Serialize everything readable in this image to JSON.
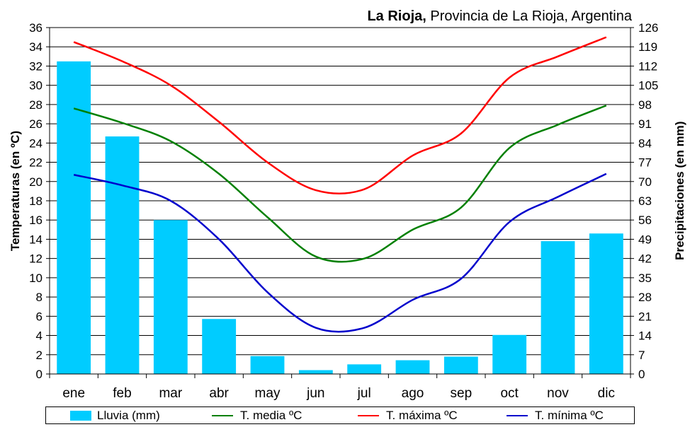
{
  "title": {
    "bold": "La Rioja,",
    "rest": " Provincia de La Rioja, Argentina"
  },
  "chart_data": {
    "type": "bar+line",
    "categories": [
      "ene",
      "feb",
      "mar",
      "abr",
      "may",
      "jun",
      "jul",
      "ago",
      "sep",
      "oct",
      "nov",
      "dic"
    ],
    "ylabel_left": "Temperaturas (en ºC)",
    "ylabel_right": "Precipitaciones (en mm)",
    "ylim_left": [
      0,
      36
    ],
    "ylim_right": [
      0,
      126
    ],
    "yticks_left": [
      "0",
      "2",
      "4",
      "6",
      "8",
      "10",
      "12",
      "14",
      "16",
      "18",
      "20",
      "22",
      "24",
      "26",
      "28",
      "30",
      "32",
      "34",
      "36"
    ],
    "yticks_right": [
      "0",
      "7",
      "14",
      "21",
      "28",
      "35",
      "42",
      "49",
      "56",
      "63",
      "70",
      "77",
      "84",
      "91",
      "98",
      "105",
      "112",
      "119",
      "126"
    ],
    "grid": true,
    "legend_placement": "bottom",
    "bar_series": {
      "name": "Lluvia (mm)",
      "axis": "right",
      "color": "#00CCFF",
      "values": [
        113.7,
        86.4,
        56,
        20,
        6.5,
        1.4,
        3.5,
        5,
        6.3,
        14.2,
        48.3,
        51.1
      ]
    },
    "line_series": [
      {
        "name": "T. media ºC",
        "axis": "left",
        "color": "#008000",
        "values": [
          27.6,
          26.1,
          24.2,
          20.8,
          16.3,
          12.2,
          12.0,
          15.0,
          17.3,
          23.5,
          25.9,
          27.9
        ]
      },
      {
        "name": "T. máxima ºC",
        "axis": "left",
        "color": "#FF0000",
        "values": [
          34.5,
          32.5,
          30.0,
          26.2,
          22.0,
          19.1,
          19.2,
          22.7,
          25.0,
          30.8,
          33.0,
          35.0
        ]
      },
      {
        "name": "T. mínima ºC",
        "axis": "left",
        "color": "#0000CC",
        "values": [
          20.7,
          19.6,
          18.0,
          14.0,
          8.5,
          4.8,
          4.8,
          7.7,
          9.9,
          15.8,
          18.4,
          20.8
        ]
      }
    ]
  }
}
